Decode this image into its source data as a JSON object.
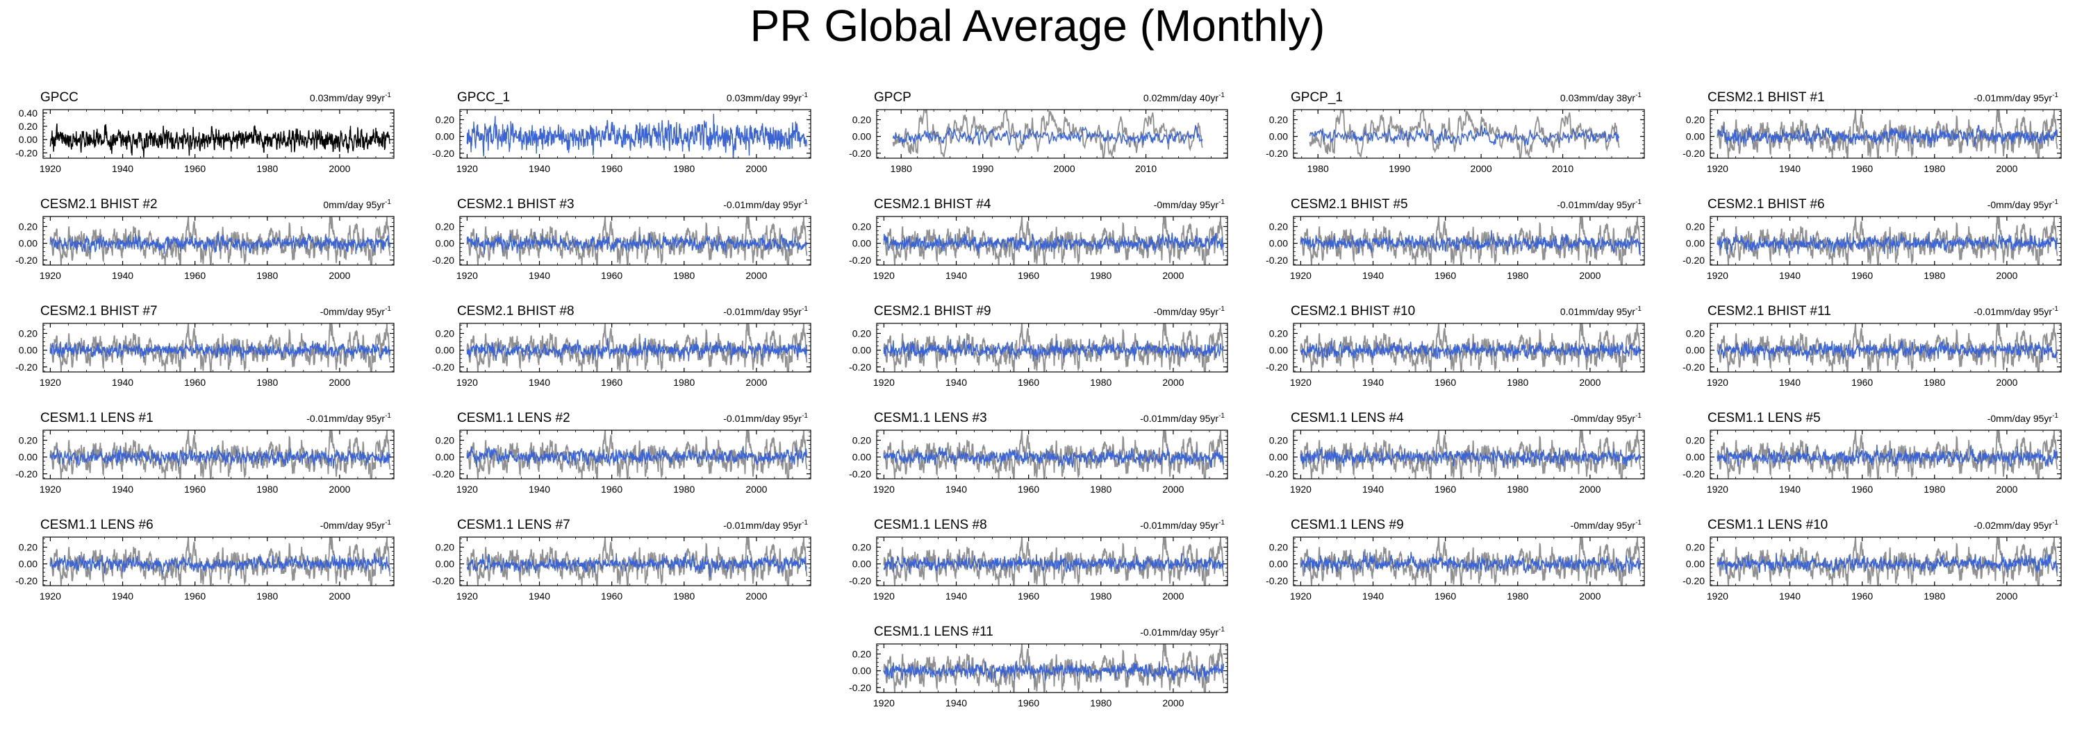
{
  "title": "PR Global Average (Monthly)",
  "colors": {
    "obs": "#000000",
    "model": "#3a63d6",
    "ref": "#909090",
    "axis": "#000000"
  },
  "chart_data": [
    {
      "type": "line",
      "title": "GPCC",
      "trend": "0.03mm/day 99yr",
      "xlim": [
        1918,
        2015
      ],
      "ylim": [
        -0.28,
        0.45
      ],
      "yticks": [
        -0.2,
        0.0,
        0.2,
        0.4
      ],
      "ytick_labels": [
        "-0.20",
        "0.00",
        "0.20",
        "0.40"
      ],
      "xticks": [
        1920,
        1940,
        1960,
        1980,
        2000
      ],
      "xtick_labels": [
        "1920",
        "1940",
        "1960",
        "1980",
        "2000"
      ],
      "series": [
        {
          "values_desc": "",
          "role": "obs"
        }
      ],
      "grid": false
    },
    {
      "type": "line",
      "title": "GPCC_1",
      "trend": "0.03mm/day 99yr",
      "xlim": [
        1918,
        2015
      ],
      "ylim": [
        -0.26,
        0.32
      ],
      "yticks": [
        -0.2,
        0.0,
        0.2
      ],
      "ytick_labels": [
        "-0.20",
        "0.00",
        "0.20"
      ],
      "xticks": [
        1920,
        1940,
        1960,
        1980,
        2000
      ],
      "xtick_labels": [
        "1920",
        "1940",
        "1960",
        "1980",
        "2000"
      ],
      "series": [
        {
          "role": "model"
        }
      ],
      "grid": false
    },
    {
      "type": "line",
      "title": "GPCP",
      "trend": "0.02mm/day 40yr",
      "xlim": [
        1977,
        2020
      ],
      "ylim": [
        -0.26,
        0.32
      ],
      "yticks": [
        -0.2,
        0.0,
        0.2
      ],
      "ytick_labels": [
        "-0.20",
        "0.00",
        "0.20"
      ],
      "xticks": [
        1980,
        1990,
        2000,
        2010
      ],
      "xtick_labels": [
        "1980",
        "1990",
        "2000",
        "2010"
      ],
      "series": [
        {
          "role": "ref"
        },
        {
          "role": "model"
        }
      ],
      "grid": false
    },
    {
      "type": "line",
      "title": "GPCP_1",
      "trend": "0.03mm/day 38yr",
      "xlim": [
        1977,
        2020
      ],
      "ylim": [
        -0.26,
        0.32
      ],
      "yticks": [
        -0.2,
        0.0,
        0.2
      ],
      "ytick_labels": [
        "-0.20",
        "0.00",
        "0.20"
      ],
      "xticks": [
        1980,
        1990,
        2000,
        2010
      ],
      "xtick_labels": [
        "1980",
        "1990",
        "2000",
        "2010"
      ],
      "series": [
        {
          "role": "ref"
        },
        {
          "role": "model"
        }
      ],
      "grid": false
    },
    {
      "type": "line",
      "title": "CESM2.1 BHIST #1",
      "trend": "-0.01mm/day 95yr",
      "xlim": [
        1918,
        2015
      ],
      "ylim": [
        -0.26,
        0.32
      ],
      "yticks": [
        -0.2,
        0.0,
        0.2
      ],
      "ytick_labels": [
        "-0.20",
        "0.00",
        "0.20"
      ],
      "xticks": [
        1920,
        1940,
        1960,
        1980,
        2000
      ],
      "xtick_labels": [
        "1920",
        "1940",
        "1960",
        "1980",
        "2000"
      ],
      "series": [
        {
          "role": "ref"
        },
        {
          "role": "model"
        }
      ],
      "grid": false
    },
    {
      "type": "line",
      "title": "CESM2.1 BHIST #2",
      "trend": "0mm/day 95yr",
      "xlim": [
        1918,
        2015
      ],
      "ylim": [
        -0.26,
        0.32
      ],
      "yticks": [
        -0.2,
        0.0,
        0.2
      ],
      "ytick_labels": [
        "-0.20",
        "0.00",
        "0.20"
      ],
      "xticks": [
        1920,
        1940,
        1960,
        1980,
        2000
      ],
      "xtick_labels": [
        "1920",
        "1940",
        "1960",
        "1980",
        "2000"
      ],
      "series": [
        {
          "role": "ref"
        },
        {
          "role": "model"
        }
      ],
      "grid": false
    },
    {
      "type": "line",
      "title": "CESM2.1 BHIST #3",
      "trend": "-0.01mm/day 95yr",
      "xlim": [
        1918,
        2015
      ],
      "ylim": [
        -0.26,
        0.32
      ],
      "yticks": [
        -0.2,
        0.0,
        0.2
      ],
      "ytick_labels": [
        "-0.20",
        "0.00",
        "0.20"
      ],
      "xticks": [
        1920,
        1940,
        1960,
        1980,
        2000
      ],
      "xtick_labels": [
        "1920",
        "1940",
        "1960",
        "1980",
        "2000"
      ],
      "series": [
        {
          "role": "ref"
        },
        {
          "role": "model"
        }
      ],
      "grid": false
    },
    {
      "type": "line",
      "title": "CESM2.1 BHIST #4",
      "trend": "-0mm/day 95yr",
      "xlim": [
        1918,
        2015
      ],
      "ylim": [
        -0.26,
        0.32
      ],
      "yticks": [
        -0.2,
        0.0,
        0.2
      ],
      "ytick_labels": [
        "-0.20",
        "0.00",
        "0.20"
      ],
      "xticks": [
        1920,
        1940,
        1960,
        1980,
        2000
      ],
      "xtick_labels": [
        "1920",
        "1940",
        "1960",
        "1980",
        "2000"
      ],
      "series": [
        {
          "role": "ref"
        },
        {
          "role": "model"
        }
      ],
      "grid": false
    },
    {
      "type": "line",
      "title": "CESM2.1 BHIST #5",
      "trend": "-0.01mm/day 95yr",
      "xlim": [
        1918,
        2015
      ],
      "ylim": [
        -0.26,
        0.32
      ],
      "yticks": [
        -0.2,
        0.0,
        0.2
      ],
      "ytick_labels": [
        "-0.20",
        "0.00",
        "0.20"
      ],
      "xticks": [
        1920,
        1940,
        1960,
        1980,
        2000
      ],
      "xtick_labels": [
        "1920",
        "1940",
        "1960",
        "1980",
        "2000"
      ],
      "series": [
        {
          "role": "ref"
        },
        {
          "role": "model"
        }
      ],
      "grid": false
    },
    {
      "type": "line",
      "title": "CESM2.1 BHIST #6",
      "trend": "-0mm/day 95yr",
      "xlim": [
        1918,
        2015
      ],
      "ylim": [
        -0.26,
        0.32
      ],
      "yticks": [
        -0.2,
        0.0,
        0.2
      ],
      "ytick_labels": [
        "-0.20",
        "0.00",
        "0.20"
      ],
      "xticks": [
        1920,
        1940,
        1960,
        1980,
        2000
      ],
      "xtick_labels": [
        "1920",
        "1940",
        "1960",
        "1980",
        "2000"
      ],
      "series": [
        {
          "role": "ref"
        },
        {
          "role": "model"
        }
      ],
      "grid": false
    },
    {
      "type": "line",
      "title": "CESM2.1 BHIST #7",
      "trend": "-0mm/day 95yr",
      "xlim": [
        1918,
        2015
      ],
      "ylim": [
        -0.26,
        0.32
      ],
      "yticks": [
        -0.2,
        0.0,
        0.2
      ],
      "ytick_labels": [
        "-0.20",
        "0.00",
        "0.20"
      ],
      "xticks": [
        1920,
        1940,
        1960,
        1980,
        2000
      ],
      "xtick_labels": [
        "1920",
        "1940",
        "1960",
        "1980",
        "2000"
      ],
      "series": [
        {
          "role": "ref"
        },
        {
          "role": "model"
        }
      ],
      "grid": false
    },
    {
      "type": "line",
      "title": "CESM2.1 BHIST #8",
      "trend": "-0.01mm/day 95yr",
      "xlim": [
        1918,
        2015
      ],
      "ylim": [
        -0.26,
        0.32
      ],
      "yticks": [
        -0.2,
        0.0,
        0.2
      ],
      "ytick_labels": [
        "-0.20",
        "0.00",
        "0.20"
      ],
      "xticks": [
        1920,
        1940,
        1960,
        1980,
        2000
      ],
      "xtick_labels": [
        "1920",
        "1940",
        "1960",
        "1980",
        "2000"
      ],
      "series": [
        {
          "role": "ref"
        },
        {
          "role": "model"
        }
      ],
      "grid": false
    },
    {
      "type": "line",
      "title": "CESM2.1 BHIST #9",
      "trend": "-0mm/day 95yr",
      "xlim": [
        1918,
        2015
      ],
      "ylim": [
        -0.26,
        0.32
      ],
      "yticks": [
        -0.2,
        0.0,
        0.2
      ],
      "ytick_labels": [
        "-0.20",
        "0.00",
        "0.20"
      ],
      "xticks": [
        1920,
        1940,
        1960,
        1980,
        2000
      ],
      "xtick_labels": [
        "1920",
        "1940",
        "1960",
        "1980",
        "2000"
      ],
      "series": [
        {
          "role": "ref"
        },
        {
          "role": "model"
        }
      ],
      "grid": false
    },
    {
      "type": "line",
      "title": "CESM2.1 BHIST #10",
      "trend": "0.01mm/day 95yr",
      "xlim": [
        1918,
        2015
      ],
      "ylim": [
        -0.26,
        0.32
      ],
      "yticks": [
        -0.2,
        0.0,
        0.2
      ],
      "ytick_labels": [
        "-0.20",
        "0.00",
        "0.20"
      ],
      "xticks": [
        1920,
        1940,
        1960,
        1980,
        2000
      ],
      "xtick_labels": [
        "1920",
        "1940",
        "1960",
        "1980",
        "2000"
      ],
      "series": [
        {
          "role": "ref"
        },
        {
          "role": "model"
        }
      ],
      "grid": false
    },
    {
      "type": "line",
      "title": "CESM2.1 BHIST #11",
      "trend": "-0.01mm/day 95yr",
      "xlim": [
        1918,
        2015
      ],
      "ylim": [
        -0.26,
        0.32
      ],
      "yticks": [
        -0.2,
        0.0,
        0.2
      ],
      "ytick_labels": [
        "-0.20",
        "0.00",
        "0.20"
      ],
      "xticks": [
        1920,
        1940,
        1960,
        1980,
        2000
      ],
      "xtick_labels": [
        "1920",
        "1940",
        "1960",
        "1980",
        "2000"
      ],
      "series": [
        {
          "role": "ref"
        },
        {
          "role": "model"
        }
      ],
      "grid": false
    },
    {
      "type": "line",
      "title": "CESM1.1 LENS #1",
      "trend": "-0.01mm/day 95yr",
      "xlim": [
        1918,
        2015
      ],
      "ylim": [
        -0.26,
        0.32
      ],
      "yticks": [
        -0.2,
        0.0,
        0.2
      ],
      "ytick_labels": [
        "-0.20",
        "0.00",
        "0.20"
      ],
      "xticks": [
        1920,
        1940,
        1960,
        1980,
        2000
      ],
      "xtick_labels": [
        "1920",
        "1940",
        "1960",
        "1980",
        "2000"
      ],
      "series": [
        {
          "role": "ref"
        },
        {
          "role": "model"
        }
      ],
      "grid": false
    },
    {
      "type": "line",
      "title": "CESM1.1 LENS #2",
      "trend": "-0.01mm/day 95yr",
      "xlim": [
        1918,
        2015
      ],
      "ylim": [
        -0.26,
        0.32
      ],
      "yticks": [
        -0.2,
        0.0,
        0.2
      ],
      "ytick_labels": [
        "-0.20",
        "0.00",
        "0.20"
      ],
      "xticks": [
        1920,
        1940,
        1960,
        1980,
        2000
      ],
      "xtick_labels": [
        "1920",
        "1940",
        "1960",
        "1980",
        "2000"
      ],
      "series": [
        {
          "role": "ref"
        },
        {
          "role": "model"
        }
      ],
      "grid": false
    },
    {
      "type": "line",
      "title": "CESM1.1 LENS #3",
      "trend": "-0.01mm/day 95yr",
      "xlim": [
        1918,
        2015
      ],
      "ylim": [
        -0.26,
        0.32
      ],
      "yticks": [
        -0.2,
        0.0,
        0.2
      ],
      "ytick_labels": [
        "-0.20",
        "0.00",
        "0.20"
      ],
      "xticks": [
        1920,
        1940,
        1960,
        1980,
        2000
      ],
      "xtick_labels": [
        "1920",
        "1940",
        "1960",
        "1980",
        "2000"
      ],
      "series": [
        {
          "role": "ref"
        },
        {
          "role": "model"
        }
      ],
      "grid": false
    },
    {
      "type": "line",
      "title": "CESM1.1 LENS #4",
      "trend": "-0mm/day 95yr",
      "xlim": [
        1918,
        2015
      ],
      "ylim": [
        -0.26,
        0.32
      ],
      "yticks": [
        -0.2,
        0.0,
        0.2
      ],
      "ytick_labels": [
        "-0.20",
        "0.00",
        "0.20"
      ],
      "xticks": [
        1920,
        1940,
        1960,
        1980,
        2000
      ],
      "xtick_labels": [
        "1920",
        "1940",
        "1960",
        "1980",
        "2000"
      ],
      "series": [
        {
          "role": "ref"
        },
        {
          "role": "model"
        }
      ],
      "grid": false
    },
    {
      "type": "line",
      "title": "CESM1.1 LENS #5",
      "trend": "-0mm/day 95yr",
      "xlim": [
        1918,
        2015
      ],
      "ylim": [
        -0.26,
        0.32
      ],
      "yticks": [
        -0.2,
        0.0,
        0.2
      ],
      "ytick_labels": [
        "-0.20",
        "0.00",
        "0.20"
      ],
      "xticks": [
        1920,
        1940,
        1960,
        1980,
        2000
      ],
      "xtick_labels": [
        "1920",
        "1940",
        "1960",
        "1980",
        "2000"
      ],
      "series": [
        {
          "role": "ref"
        },
        {
          "role": "model"
        }
      ],
      "grid": false
    },
    {
      "type": "line",
      "title": "CESM1.1 LENS #6",
      "trend": "-0mm/day 95yr",
      "xlim": [
        1918,
        2015
      ],
      "ylim": [
        -0.26,
        0.32
      ],
      "yticks": [
        -0.2,
        0.0,
        0.2
      ],
      "ytick_labels": [
        "-0.20",
        "0.00",
        "0.20"
      ],
      "xticks": [
        1920,
        1940,
        1960,
        1980,
        2000
      ],
      "xtick_labels": [
        "1920",
        "1940",
        "1960",
        "1980",
        "2000"
      ],
      "series": [
        {
          "role": "ref"
        },
        {
          "role": "model"
        }
      ],
      "grid": false
    },
    {
      "type": "line",
      "title": "CESM1.1 LENS #7",
      "trend": "-0.01mm/day 95yr",
      "xlim": [
        1918,
        2015
      ],
      "ylim": [
        -0.26,
        0.32
      ],
      "yticks": [
        -0.2,
        0.0,
        0.2
      ],
      "ytick_labels": [
        "-0.20",
        "0.00",
        "0.20"
      ],
      "xticks": [
        1920,
        1940,
        1960,
        1980,
        2000
      ],
      "xtick_labels": [
        "1920",
        "1940",
        "1960",
        "1980",
        "2000"
      ],
      "series": [
        {
          "role": "ref"
        },
        {
          "role": "model"
        }
      ],
      "grid": false
    },
    {
      "type": "line",
      "title": "CESM1.1 LENS #8",
      "trend": "-0.01mm/day 95yr",
      "xlim": [
        1918,
        2015
      ],
      "ylim": [
        -0.26,
        0.32
      ],
      "yticks": [
        -0.2,
        0.0,
        0.2
      ],
      "ytick_labels": [
        "-0.20",
        "0.00",
        "0.20"
      ],
      "xticks": [
        1920,
        1940,
        1960,
        1980,
        2000
      ],
      "xtick_labels": [
        "1920",
        "1940",
        "1960",
        "1980",
        "2000"
      ],
      "series": [
        {
          "role": "ref"
        },
        {
          "role": "model"
        }
      ],
      "grid": false
    },
    {
      "type": "line",
      "title": "CESM1.1 LENS #9",
      "trend": "-0mm/day 95yr",
      "xlim": [
        1918,
        2015
      ],
      "ylim": [
        -0.26,
        0.32
      ],
      "yticks": [
        -0.2,
        0.0,
        0.2
      ],
      "ytick_labels": [
        "-0.20",
        "0.00",
        "0.20"
      ],
      "xticks": [
        1920,
        1940,
        1960,
        1980,
        2000
      ],
      "xtick_labels": [
        "1920",
        "1940",
        "1960",
        "1980",
        "2000"
      ],
      "series": [
        {
          "role": "ref"
        },
        {
          "role": "model"
        }
      ],
      "grid": false
    },
    {
      "type": "line",
      "title": "CESM1.1 LENS #10",
      "trend": "-0.02mm/day 95yr",
      "xlim": [
        1918,
        2015
      ],
      "ylim": [
        -0.26,
        0.32
      ],
      "yticks": [
        -0.2,
        0.0,
        0.2
      ],
      "ytick_labels": [
        "-0.20",
        "0.00",
        "0.20"
      ],
      "xticks": [
        1920,
        1940,
        1960,
        1980,
        2000
      ],
      "xtick_labels": [
        "1920",
        "1940",
        "1960",
        "1980",
        "2000"
      ],
      "series": [
        {
          "role": "ref"
        },
        {
          "role": "model"
        }
      ],
      "grid": false
    },
    {
      "type": "line",
      "title": "CESM1.1 LENS #11",
      "trend": "-0.01mm/day 95yr",
      "xlim": [
        1918,
        2015
      ],
      "ylim": [
        -0.26,
        0.32
      ],
      "yticks": [
        -0.2,
        0.0,
        0.2
      ],
      "ytick_labels": [
        "-0.20",
        "0.00",
        "0.20"
      ],
      "xticks": [
        1920,
        1940,
        1960,
        1980,
        2000
      ],
      "xtick_labels": [
        "1920",
        "1940",
        "1960",
        "1980",
        "2000"
      ],
      "series": [
        {
          "role": "ref"
        },
        {
          "role": "model"
        }
      ],
      "grid": false
    }
  ]
}
